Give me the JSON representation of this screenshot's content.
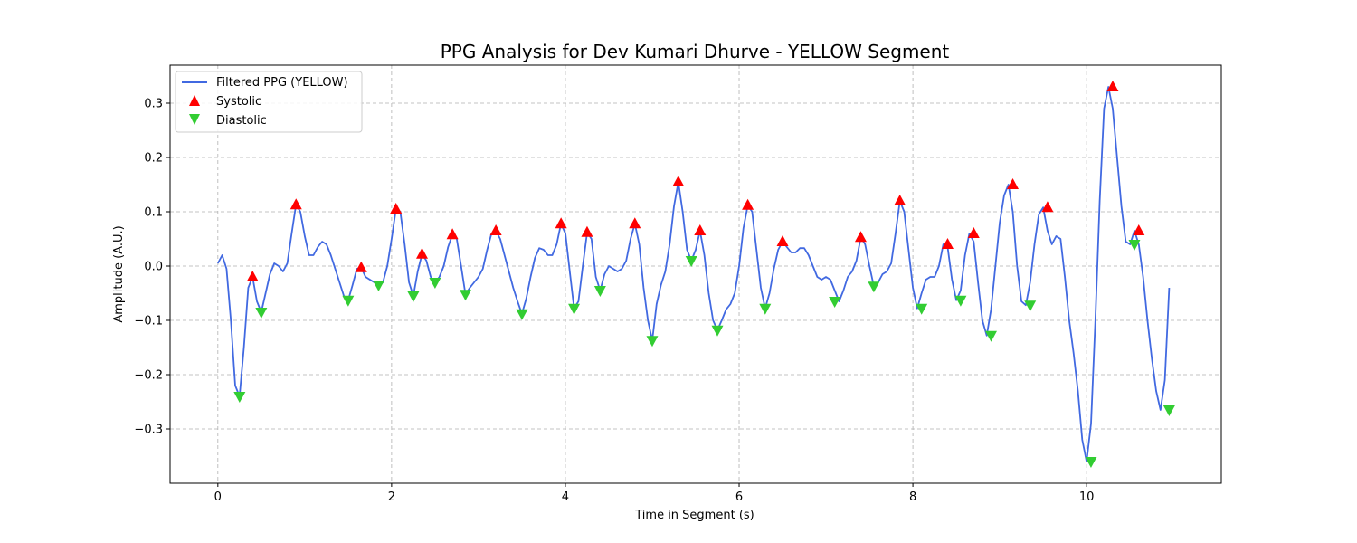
{
  "chart_data": {
    "type": "line",
    "title": "PPG Analysis for Dev Kumari Dhurve - YELLOW Segment",
    "xlabel": "Time in Segment (s)",
    "ylabel": "Amplitude (A.U.)",
    "xlim": [
      -0.55,
      11.55
    ],
    "ylim": [
      -0.4,
      0.37
    ],
    "xticks": [
      0,
      2,
      4,
      6,
      8,
      10
    ],
    "yticks": [
      -0.3,
      -0.2,
      -0.1,
      0.0,
      0.1,
      0.2,
      0.3
    ],
    "ytick_labels": [
      "−0.3",
      "−0.2",
      "−0.1",
      "0.0",
      "0.1",
      "0.2",
      "0.3"
    ],
    "grid": true,
    "legend_position": "upper left",
    "colors": {
      "signal": "#4169e1",
      "systolic": "#ff0000",
      "diastolic": "#32cd32"
    },
    "series": [
      {
        "name": "Filtered PPG (YELLOW)",
        "kind": "line",
        "points": [
          [
            0.0,
            0.005
          ],
          [
            0.05,
            0.02
          ],
          [
            0.1,
            -0.005
          ],
          [
            0.15,
            -0.1
          ],
          [
            0.2,
            -0.22
          ],
          [
            0.25,
            -0.24
          ],
          [
            0.3,
            -0.15
          ],
          [
            0.35,
            -0.04
          ],
          [
            0.4,
            -0.02
          ],
          [
            0.45,
            -0.065
          ],
          [
            0.5,
            -0.085
          ],
          [
            0.55,
            -0.05
          ],
          [
            0.6,
            -0.015
          ],
          [
            0.65,
            0.005
          ],
          [
            0.7,
            0.0
          ],
          [
            0.75,
            -0.01
          ],
          [
            0.8,
            0.005
          ],
          [
            0.85,
            0.06
          ],
          [
            0.9,
            0.113
          ],
          [
            0.95,
            0.1
          ],
          [
            1.0,
            0.055
          ],
          [
            1.05,
            0.02
          ],
          [
            1.1,
            0.02
          ],
          [
            1.15,
            0.035
          ],
          [
            1.2,
            0.045
          ],
          [
            1.25,
            0.04
          ],
          [
            1.3,
            0.02
          ],
          [
            1.35,
            -0.005
          ],
          [
            1.4,
            -0.03
          ],
          [
            1.45,
            -0.055
          ],
          [
            1.5,
            -0.063
          ],
          [
            1.55,
            -0.035
          ],
          [
            1.6,
            -0.005
          ],
          [
            1.65,
            -0.003
          ],
          [
            1.7,
            -0.02
          ],
          [
            1.75,
            -0.025
          ],
          [
            1.8,
            -0.03
          ],
          [
            1.85,
            -0.035
          ],
          [
            1.9,
            -0.03
          ],
          [
            1.95,
            0.0
          ],
          [
            2.0,
            0.05
          ],
          [
            2.05,
            0.105
          ],
          [
            2.1,
            0.1
          ],
          [
            2.15,
            0.04
          ],
          [
            2.2,
            -0.03
          ],
          [
            2.25,
            -0.055
          ],
          [
            2.3,
            -0.01
          ],
          [
            2.35,
            0.022
          ],
          [
            2.4,
            0.01
          ],
          [
            2.45,
            -0.02
          ],
          [
            2.5,
            -0.03
          ],
          [
            2.55,
            -0.02
          ],
          [
            2.6,
            0.0
          ],
          [
            2.65,
            0.035
          ],
          [
            2.7,
            0.058
          ],
          [
            2.75,
            0.05
          ],
          [
            2.8,
            0.0
          ],
          [
            2.85,
            -0.052
          ],
          [
            2.9,
            -0.04
          ],
          [
            2.95,
            -0.03
          ],
          [
            3.0,
            -0.02
          ],
          [
            3.05,
            -0.005
          ],
          [
            3.1,
            0.03
          ],
          [
            3.15,
            0.06
          ],
          [
            3.2,
            0.065
          ],
          [
            3.25,
            0.05
          ],
          [
            3.3,
            0.02
          ],
          [
            3.35,
            -0.01
          ],
          [
            3.4,
            -0.04
          ],
          [
            3.45,
            -0.065
          ],
          [
            3.5,
            -0.088
          ],
          [
            3.55,
            -0.06
          ],
          [
            3.6,
            -0.02
          ],
          [
            3.65,
            0.015
          ],
          [
            3.7,
            0.033
          ],
          [
            3.75,
            0.03
          ],
          [
            3.8,
            0.02
          ],
          [
            3.85,
            0.02
          ],
          [
            3.9,
            0.04
          ],
          [
            3.95,
            0.078
          ],
          [
            4.0,
            0.06
          ],
          [
            4.05,
            -0.01
          ],
          [
            4.1,
            -0.078
          ],
          [
            4.15,
            -0.065
          ],
          [
            4.2,
            0.0
          ],
          [
            4.25,
            0.062
          ],
          [
            4.3,
            0.05
          ],
          [
            4.35,
            -0.02
          ],
          [
            4.4,
            -0.045
          ],
          [
            4.45,
            -0.015
          ],
          [
            4.5,
            0.0
          ],
          [
            4.55,
            -0.005
          ],
          [
            4.6,
            -0.01
          ],
          [
            4.65,
            -0.005
          ],
          [
            4.7,
            0.01
          ],
          [
            4.75,
            0.05
          ],
          [
            4.8,
            0.078
          ],
          [
            4.85,
            0.04
          ],
          [
            4.9,
            -0.04
          ],
          [
            4.95,
            -0.1
          ],
          [
            5.0,
            -0.137
          ],
          [
            5.05,
            -0.07
          ],
          [
            5.1,
            -0.035
          ],
          [
            5.15,
            -0.01
          ],
          [
            5.2,
            0.04
          ],
          [
            5.25,
            0.11
          ],
          [
            5.3,
            0.155
          ],
          [
            5.35,
            0.1
          ],
          [
            5.4,
            0.03
          ],
          [
            5.45,
            0.01
          ],
          [
            5.5,
            0.03
          ],
          [
            5.55,
            0.065
          ],
          [
            5.6,
            0.02
          ],
          [
            5.65,
            -0.05
          ],
          [
            5.7,
            -0.1
          ],
          [
            5.75,
            -0.118
          ],
          [
            5.8,
            -0.1
          ],
          [
            5.85,
            -0.08
          ],
          [
            5.9,
            -0.07
          ],
          [
            5.95,
            -0.05
          ],
          [
            6.0,
            0.0
          ],
          [
            6.05,
            0.07
          ],
          [
            6.1,
            0.112
          ],
          [
            6.15,
            0.1
          ],
          [
            6.2,
            0.03
          ],
          [
            6.25,
            -0.04
          ],
          [
            6.3,
            -0.078
          ],
          [
            6.35,
            -0.05
          ],
          [
            6.4,
            -0.005
          ],
          [
            6.45,
            0.03
          ],
          [
            6.5,
            0.045
          ],
          [
            6.55,
            0.035
          ],
          [
            6.6,
            0.025
          ],
          [
            6.65,
            0.025
          ],
          [
            6.7,
            0.033
          ],
          [
            6.75,
            0.033
          ],
          [
            6.8,
            0.02
          ],
          [
            6.85,
            0.0
          ],
          [
            6.9,
            -0.02
          ],
          [
            6.95,
            -0.025
          ],
          [
            7.0,
            -0.02
          ],
          [
            7.05,
            -0.025
          ],
          [
            7.1,
            -0.045
          ],
          [
            7.15,
            -0.065
          ],
          [
            7.2,
            -0.045
          ],
          [
            7.25,
            -0.02
          ],
          [
            7.3,
            -0.01
          ],
          [
            7.35,
            0.01
          ],
          [
            7.4,
            0.053
          ],
          [
            7.45,
            0.04
          ],
          [
            7.5,
            0.0
          ],
          [
            7.55,
            -0.037
          ],
          [
            7.6,
            -0.03
          ],
          [
            7.65,
            -0.015
          ],
          [
            7.7,
            -0.01
          ],
          [
            7.75,
            0.005
          ],
          [
            7.8,
            0.06
          ],
          [
            7.85,
            0.12
          ],
          [
            7.9,
            0.1
          ],
          [
            7.95,
            0.03
          ],
          [
            8.0,
            -0.04
          ],
          [
            8.05,
            -0.078
          ],
          [
            8.1,
            -0.05
          ],
          [
            8.15,
            -0.025
          ],
          [
            8.2,
            -0.02
          ],
          [
            8.25,
            -0.02
          ],
          [
            8.3,
            0.0
          ],
          [
            8.35,
            0.04
          ],
          [
            8.4,
            0.035
          ],
          [
            8.45,
            -0.025
          ],
          [
            8.5,
            -0.063
          ],
          [
            8.55,
            -0.045
          ],
          [
            8.6,
            0.02
          ],
          [
            8.65,
            0.06
          ],
          [
            8.7,
            0.045
          ],
          [
            8.75,
            -0.03
          ],
          [
            8.8,
            -0.1
          ],
          [
            8.85,
            -0.128
          ],
          [
            8.9,
            -0.08
          ],
          [
            8.95,
            0.0
          ],
          [
            9.0,
            0.08
          ],
          [
            9.05,
            0.13
          ],
          [
            9.1,
            0.15
          ],
          [
            9.15,
            0.1
          ],
          [
            9.2,
            0.0
          ],
          [
            9.25,
            -0.065
          ],
          [
            9.3,
            -0.072
          ],
          [
            9.35,
            -0.03
          ],
          [
            9.4,
            0.04
          ],
          [
            9.45,
            0.095
          ],
          [
            9.5,
            0.108
          ],
          [
            9.55,
            0.065
          ],
          [
            9.6,
            0.04
          ],
          [
            9.65,
            0.055
          ],
          [
            9.7,
            0.05
          ],
          [
            9.75,
            -0.02
          ],
          [
            9.8,
            -0.1
          ],
          [
            9.85,
            -0.16
          ],
          [
            9.9,
            -0.23
          ],
          [
            9.95,
            -0.32
          ],
          [
            10.0,
            -0.36
          ],
          [
            10.05,
            -0.29
          ],
          [
            10.1,
            -0.1
          ],
          [
            10.15,
            0.12
          ],
          [
            10.2,
            0.29
          ],
          [
            10.25,
            0.33
          ],
          [
            10.3,
            0.29
          ],
          [
            10.35,
            0.2
          ],
          [
            10.4,
            0.11
          ],
          [
            10.45,
            0.045
          ],
          [
            10.5,
            0.04
          ],
          [
            10.55,
            0.065
          ],
          [
            10.6,
            0.04
          ],
          [
            10.65,
            -0.02
          ],
          [
            10.7,
            -0.1
          ],
          [
            10.75,
            -0.17
          ],
          [
            10.8,
            -0.23
          ],
          [
            10.85,
            -0.265
          ],
          [
            10.9,
            -0.21
          ],
          [
            10.95,
            -0.04
          ]
        ]
      },
      {
        "name": "Systolic",
        "kind": "marker-up",
        "points": [
          [
            0.4,
            -0.02
          ],
          [
            0.9,
            0.113
          ],
          [
            1.65,
            -0.003
          ],
          [
            2.05,
            0.105
          ],
          [
            2.35,
            0.022
          ],
          [
            2.7,
            0.058
          ],
          [
            3.2,
            0.065
          ],
          [
            3.95,
            0.078
          ],
          [
            4.25,
            0.062
          ],
          [
            4.8,
            0.078
          ],
          [
            5.3,
            0.155
          ],
          [
            5.55,
            0.065
          ],
          [
            6.1,
            0.112
          ],
          [
            6.5,
            0.045
          ],
          [
            7.4,
            0.053
          ],
          [
            7.85,
            0.12
          ],
          [
            8.4,
            0.04
          ],
          [
            8.7,
            0.06
          ],
          [
            9.15,
            0.15
          ],
          [
            9.55,
            0.108
          ],
          [
            10.3,
            0.33
          ],
          [
            10.6,
            0.065
          ]
        ]
      },
      {
        "name": "Diastolic",
        "kind": "marker-down",
        "points": [
          [
            0.25,
            -0.24
          ],
          [
            0.5,
            -0.085
          ],
          [
            1.5,
            -0.063
          ],
          [
            1.85,
            -0.035
          ],
          [
            2.25,
            -0.055
          ],
          [
            2.5,
            -0.03
          ],
          [
            2.85,
            -0.052
          ],
          [
            3.5,
            -0.088
          ],
          [
            4.1,
            -0.078
          ],
          [
            4.4,
            -0.045
          ],
          [
            5.0,
            -0.137
          ],
          [
            5.45,
            0.01
          ],
          [
            5.75,
            -0.118
          ],
          [
            6.3,
            -0.078
          ],
          [
            7.1,
            -0.065
          ],
          [
            7.55,
            -0.037
          ],
          [
            8.1,
            -0.078
          ],
          [
            8.55,
            -0.063
          ],
          [
            8.9,
            -0.128
          ],
          [
            9.35,
            -0.072
          ],
          [
            10.05,
            -0.36
          ],
          [
            10.55,
            0.04
          ],
          [
            10.95,
            -0.265
          ]
        ]
      }
    ]
  }
}
